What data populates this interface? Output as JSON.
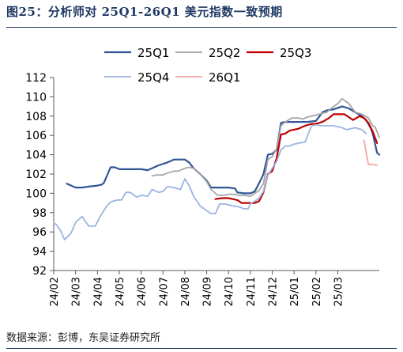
{
  "figure": {
    "title": "图25：分析师对 25Q1-26Q1 美元指数一致预期",
    "source": "数据来源：彭博，东吴证券研究所"
  },
  "chart_data": {
    "type": "line",
    "ylim": [
      92,
      112
    ],
    "yticks": [
      92,
      94,
      96,
      98,
      100,
      102,
      104,
      106,
      108,
      110,
      112
    ],
    "xlabels": [
      "24/02",
      "24/03",
      "24/04",
      "24/05",
      "24/06",
      "24/07",
      "24/08",
      "24/09",
      "24/10",
      "24/11",
      "24/12",
      "25/01",
      "25/02",
      "25/03"
    ],
    "x_unit": "month index (0 = 24/02 tick)",
    "grid": false,
    "legend_position": "top",
    "series": [
      {
        "name": "25Q1",
        "color": "#2f5597",
        "points": [
          [
            0.6,
            101.0
          ],
          [
            0.8,
            100.8
          ],
          [
            1.0,
            100.6
          ],
          [
            1.3,
            100.6
          ],
          [
            1.6,
            100.7
          ],
          [
            2.0,
            100.8
          ],
          [
            2.2,
            100.9
          ],
          [
            2.3,
            101.1
          ],
          [
            2.6,
            102.7
          ],
          [
            2.8,
            102.7
          ],
          [
            3.0,
            102.5
          ],
          [
            3.5,
            102.5
          ],
          [
            4.0,
            102.5
          ],
          [
            4.3,
            102.4
          ],
          [
            4.5,
            102.6
          ],
          [
            4.8,
            102.9
          ],
          [
            5.2,
            103.2
          ],
          [
            5.5,
            103.5
          ],
          [
            6.0,
            103.5
          ],
          [
            6.2,
            103.2
          ],
          [
            6.4,
            102.6
          ],
          [
            6.7,
            102.0
          ],
          [
            7.0,
            101.3
          ],
          [
            7.2,
            100.6
          ],
          [
            7.5,
            100.6
          ],
          [
            8.0,
            100.6
          ],
          [
            8.3,
            100.5
          ],
          [
            8.4,
            100.1
          ],
          [
            8.7,
            100.0
          ],
          [
            9.0,
            100.0
          ],
          [
            9.2,
            100.2
          ],
          [
            9.5,
            101.5
          ],
          [
            9.6,
            102.0
          ],
          [
            9.8,
            104.0
          ],
          [
            10.0,
            104.1
          ],
          [
            10.2,
            104.5
          ],
          [
            10.4,
            107.3
          ],
          [
            10.6,
            107.4
          ],
          [
            11.0,
            107.4
          ],
          [
            11.3,
            107.4
          ],
          [
            11.6,
            107.4
          ],
          [
            12.0,
            107.5
          ],
          [
            12.3,
            108.4
          ],
          [
            12.5,
            108.6
          ],
          [
            12.8,
            108.7
          ],
          [
            13.2,
            109.0
          ],
          [
            13.5,
            108.8
          ],
          [
            13.8,
            108.4
          ],
          [
            14.1,
            108.0
          ],
          [
            14.3,
            107.6
          ],
          [
            14.5,
            106.8
          ],
          [
            14.6,
            106.2
          ],
          [
            14.8,
            104.2
          ],
          [
            14.9,
            104.0
          ]
        ]
      },
      {
        "name": "25Q2",
        "color": "#a6a6a6",
        "points": [
          [
            4.5,
            101.8
          ],
          [
            4.7,
            101.9
          ],
          [
            5.0,
            101.9
          ],
          [
            5.2,
            102.1
          ],
          [
            5.5,
            102.3
          ],
          [
            5.7,
            102.3
          ],
          [
            6.0,
            102.6
          ],
          [
            6.2,
            102.7
          ],
          [
            6.4,
            102.6
          ],
          [
            6.7,
            102.0
          ],
          [
            7.0,
            101.2
          ],
          [
            7.2,
            100.4
          ],
          [
            7.5,
            99.8
          ],
          [
            7.8,
            99.8
          ],
          [
            8.0,
            99.9
          ],
          [
            8.3,
            99.9
          ],
          [
            8.5,
            99.8
          ],
          [
            8.7,
            99.8
          ],
          [
            9.0,
            99.7
          ],
          [
            9.2,
            100.0
          ],
          [
            9.4,
            100.3
          ],
          [
            9.6,
            101.0
          ],
          [
            9.8,
            103.5
          ],
          [
            10.0,
            103.8
          ],
          [
            10.2,
            104.6
          ],
          [
            10.4,
            107.0
          ],
          [
            10.6,
            107.4
          ],
          [
            10.9,
            107.8
          ],
          [
            11.2,
            107.8
          ],
          [
            11.4,
            107.7
          ],
          [
            11.6,
            107.9
          ],
          [
            12.0,
            108.1
          ],
          [
            12.3,
            108.3
          ],
          [
            12.5,
            108.4
          ],
          [
            12.7,
            108.8
          ],
          [
            13.0,
            109.3
          ],
          [
            13.2,
            109.8
          ],
          [
            13.5,
            109.3
          ],
          [
            13.8,
            108.4
          ],
          [
            14.1,
            108.2
          ],
          [
            14.4,
            107.8
          ],
          [
            14.6,
            107.0
          ],
          [
            14.7,
            106.9
          ],
          [
            14.9,
            105.8
          ]
        ]
      },
      {
        "name": "25Q3",
        "color": "#c00000",
        "points": [
          [
            7.4,
            99.4
          ],
          [
            7.7,
            99.5
          ],
          [
            8.0,
            99.5
          ],
          [
            8.2,
            99.4
          ],
          [
            8.4,
            99.3
          ],
          [
            8.6,
            99.0
          ],
          [
            9.0,
            99.0
          ],
          [
            9.2,
            99.0
          ],
          [
            9.4,
            99.2
          ],
          [
            9.6,
            100.1
          ],
          [
            9.8,
            102.0
          ],
          [
            10.0,
            102.3
          ],
          [
            10.2,
            103.6
          ],
          [
            10.4,
            106.1
          ],
          [
            10.6,
            106.2
          ],
          [
            10.8,
            106.5
          ],
          [
            11.0,
            106.6
          ],
          [
            11.2,
            106.7
          ],
          [
            11.5,
            107.0
          ],
          [
            11.8,
            107.2
          ],
          [
            12.0,
            107.2
          ],
          [
            12.3,
            107.4
          ],
          [
            12.6,
            107.8
          ],
          [
            12.8,
            108.2
          ],
          [
            13.0,
            108.2
          ],
          [
            13.3,
            108.2
          ],
          [
            13.5,
            107.9
          ],
          [
            13.7,
            107.6
          ],
          [
            14.0,
            108.0
          ],
          [
            14.2,
            107.8
          ],
          [
            14.4,
            107.3
          ],
          [
            14.6,
            106.4
          ],
          [
            14.8,
            105.2
          ]
        ]
      },
      {
        "name": "25Q4",
        "color": "#9db3df",
        "points": [
          [
            0.0,
            96.9
          ],
          [
            0.1,
            96.8
          ],
          [
            0.3,
            96.2
          ],
          [
            0.5,
            95.2
          ],
          [
            0.8,
            95.9
          ],
          [
            1.0,
            97.0
          ],
          [
            1.3,
            97.6
          ],
          [
            1.6,
            96.6
          ],
          [
            1.9,
            96.6
          ],
          [
            2.1,
            97.5
          ],
          [
            2.4,
            98.6
          ],
          [
            2.6,
            99.1
          ],
          [
            2.9,
            99.3
          ],
          [
            3.1,
            99.3
          ],
          [
            3.3,
            100.1
          ],
          [
            3.5,
            100.1
          ],
          [
            3.8,
            99.6
          ],
          [
            4.0,
            99.8
          ],
          [
            4.3,
            99.7
          ],
          [
            4.5,
            100.4
          ],
          [
            4.8,
            100.1
          ],
          [
            5.0,
            100.2
          ],
          [
            5.2,
            100.7
          ],
          [
            5.5,
            100.6
          ],
          [
            5.8,
            100.4
          ],
          [
            6.0,
            101.5
          ],
          [
            6.2,
            100.8
          ],
          [
            6.4,
            99.7
          ],
          [
            6.7,
            98.7
          ],
          [
            7.0,
            98.2
          ],
          [
            7.2,
            97.9
          ],
          [
            7.4,
            97.9
          ],
          [
            7.6,
            98.9
          ],
          [
            7.8,
            98.9
          ],
          [
            8.0,
            98.8
          ],
          [
            8.2,
            98.7
          ],
          [
            8.5,
            98.6
          ],
          [
            8.7,
            98.4
          ],
          [
            8.9,
            98.4
          ],
          [
            9.0,
            98.9
          ],
          [
            9.2,
            99.2
          ],
          [
            9.4,
            99.5
          ],
          [
            9.6,
            100.2
          ],
          [
            9.8,
            101.9
          ],
          [
            10.0,
            102.6
          ],
          [
            10.2,
            103.3
          ],
          [
            10.4,
            104.5
          ],
          [
            10.6,
            104.9
          ],
          [
            10.8,
            104.9
          ],
          [
            11.0,
            105.1
          ],
          [
            11.2,
            105.2
          ],
          [
            11.5,
            105.3
          ],
          [
            11.8,
            107.0
          ],
          [
            12.0,
            107.1
          ],
          [
            12.3,
            107.0
          ],
          [
            12.5,
            107.0
          ],
          [
            12.8,
            107.0
          ],
          [
            13.0,
            106.9
          ],
          [
            13.2,
            106.8
          ],
          [
            13.4,
            106.6
          ],
          [
            13.6,
            106.7
          ],
          [
            13.8,
            106.8
          ],
          [
            14.1,
            106.6
          ],
          [
            14.3,
            106.2
          ]
        ]
      },
      {
        "name": "26Q1",
        "color": "#f4a6a6",
        "points": [
          [
            14.2,
            105.5
          ],
          [
            14.4,
            103.0
          ],
          [
            14.6,
            103.0
          ],
          [
            14.8,
            102.9
          ]
        ]
      }
    ]
  }
}
